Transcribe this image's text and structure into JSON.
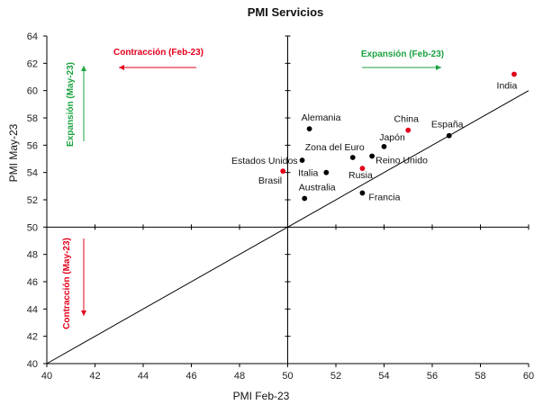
{
  "chart_data": {
    "type": "scatter",
    "title": "PMI Servicios",
    "xlabel": "PMI Feb-23",
    "ylabel": "PMI May-23",
    "xlim": [
      40,
      60
    ],
    "ylim": [
      40,
      64
    ],
    "x_ticks": [
      "40",
      "42",
      "44",
      "46",
      "48",
      "50",
      "52",
      "54",
      "56",
      "58",
      "60"
    ],
    "y_ticks": [
      "40",
      "42",
      "44",
      "46",
      "48",
      "50",
      "52",
      "54",
      "56",
      "58",
      "60",
      "62",
      "64"
    ],
    "reference_lines": {
      "vertical_x": 50,
      "horizontal_y": 50,
      "diagonal": "y = x"
    },
    "grid": false,
    "colors": {
      "highlight": "#e3001b",
      "default": "#000000",
      "expansion": "#1aa340",
      "contraction": "#e3001b"
    },
    "points": [
      {
        "label": "Alemania",
        "x": 50.9,
        "y": 57.2,
        "color": "#000000"
      },
      {
        "label": "China",
        "x": 55.0,
        "y": 57.1,
        "color": "#e3001b"
      },
      {
        "label": "España",
        "x": 56.7,
        "y": 56.7,
        "color": "#000000"
      },
      {
        "label": "India",
        "x": 59.4,
        "y": 61.2,
        "color": "#e3001b"
      },
      {
        "label": "Japón",
        "x": 54.0,
        "y": 55.9,
        "color": "#000000"
      },
      {
        "label": "Zona del Euro",
        "x": 52.7,
        "y": 55.1,
        "color": "#000000"
      },
      {
        "label": "Reino Unido",
        "x": 53.5,
        "y": 55.2,
        "color": "#000000"
      },
      {
        "label": "Estados Unidos",
        "x": 50.6,
        "y": 54.9,
        "color": "#000000"
      },
      {
        "label": "Rusia",
        "x": 53.1,
        "y": 54.3,
        "color": "#e3001b"
      },
      {
        "label": "Italia",
        "x": 51.6,
        "y": 54.0,
        "color": "#000000"
      },
      {
        "label": "Brasil",
        "x": 49.8,
        "y": 54.1,
        "color": "#e3001b"
      },
      {
        "label": "Australia",
        "x": 50.7,
        "y": 52.1,
        "color": "#000000"
      },
      {
        "label": "Francia",
        "x": 53.1,
        "y": 52.5,
        "color": "#000000"
      }
    ],
    "annotations": [
      {
        "text": "Contracción (Feb-23)",
        "color": "#e3001b",
        "arrow": "left"
      },
      {
        "text": "Expansión (Feb-23)",
        "color": "#1aa340",
        "arrow": "right"
      },
      {
        "text": "Expansión (May-23)",
        "color": "#1aa340",
        "arrow": "up"
      },
      {
        "text": "Contracción (May-23)",
        "color": "#e3001b",
        "arrow": "down"
      }
    ]
  }
}
